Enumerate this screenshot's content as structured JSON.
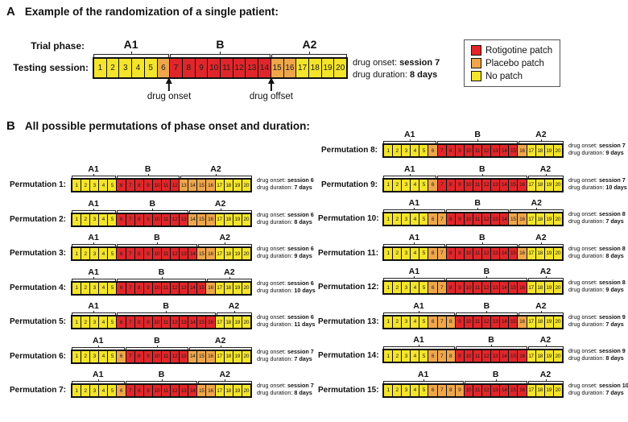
{
  "figure": {
    "colors": {
      "rotigotine": "#e0262a",
      "placebo": "#efa64a",
      "no_patch": "#f4e42c",
      "border": "#111111"
    },
    "session_count": 20,
    "session_numbers": [
      1,
      2,
      3,
      4,
      5,
      6,
      7,
      8,
      9,
      10,
      11,
      12,
      13,
      14,
      15,
      16,
      17,
      18,
      19,
      20
    ],
    "patch_window_start": 6,
    "patch_window_end": 16,
    "phases": [
      "A1",
      "B",
      "A2"
    ],
    "annotation_onset_prefix": "drug onset:",
    "annotation_duration_prefix": "drug duration:"
  },
  "panel_a": {
    "tag": "A",
    "title": "Example of the randomization of a single patient:",
    "trial_phase_label": "Trial phase:",
    "testing_session_label": "Testing session:",
    "onset": 7,
    "duration": 8,
    "onset_value": "session 7",
    "duration_value": "8 days",
    "onset_arrow_label": "drug onset",
    "offset_arrow_label": "drug offset",
    "legend": [
      {
        "label": "Rotigotine patch",
        "color_key": "rotigotine"
      },
      {
        "label": "Placebo patch",
        "color_key": "placebo"
      },
      {
        "label": "No patch",
        "color_key": "no_patch"
      }
    ]
  },
  "panel_b": {
    "tag": "B",
    "title": "All possible permutations of phase onset and duration:",
    "left_column": [
      {
        "label": "Permutation 1:",
        "onset": 6,
        "duration": 7,
        "onset_value": "session 6",
        "duration_value": "7 days"
      },
      {
        "label": "Permutation 2:",
        "onset": 6,
        "duration": 8,
        "onset_value": "session 6",
        "duration_value": "8 days"
      },
      {
        "label": "Permutation 3:",
        "onset": 6,
        "duration": 9,
        "onset_value": "session 6",
        "duration_value": "9 days"
      },
      {
        "label": "Permutation 4:",
        "onset": 6,
        "duration": 10,
        "onset_value": "session 6",
        "duration_value": "10 days"
      },
      {
        "label": "Permutation 5:",
        "onset": 6,
        "duration": 11,
        "onset_value": "session 6",
        "duration_value": "11 days"
      },
      {
        "label": "Permutation 6:",
        "onset": 7,
        "duration": 7,
        "onset_value": "session 7",
        "duration_value": "7 days"
      },
      {
        "label": "Permutation 7:",
        "onset": 7,
        "duration": 8,
        "onset_value": "session 7",
        "duration_value": "8 days"
      }
    ],
    "right_column": [
      {
        "label": "Permutation 8:",
        "onset": 7,
        "duration": 9,
        "onset_value": "session 7",
        "duration_value": "9 days"
      },
      {
        "label": "Permutation 9:",
        "onset": 7,
        "duration": 10,
        "onset_value": "session 7",
        "duration_value": "10 days"
      },
      {
        "label": "Permutation 10:",
        "onset": 8,
        "duration": 7,
        "onset_value": "session 8",
        "duration_value": "7 days"
      },
      {
        "label": "Permutation 11:",
        "onset": 8,
        "duration": 8,
        "onset_value": "session 8",
        "duration_value": "8 days"
      },
      {
        "label": "Permutation 12:",
        "onset": 8,
        "duration": 9,
        "onset_value": "session 8",
        "duration_value": "9 days"
      },
      {
        "label": "Permutation 13:",
        "onset": 9,
        "duration": 7,
        "onset_value": "session 9",
        "duration_value": "7 days"
      },
      {
        "label": "Permutation 14:",
        "onset": 9,
        "duration": 8,
        "onset_value": "session 9",
        "duration_value": "8 days"
      },
      {
        "label": "Permutation 15:",
        "onset": 10,
        "duration": 7,
        "onset_value": "session 10",
        "duration_value": "7 days"
      }
    ]
  }
}
